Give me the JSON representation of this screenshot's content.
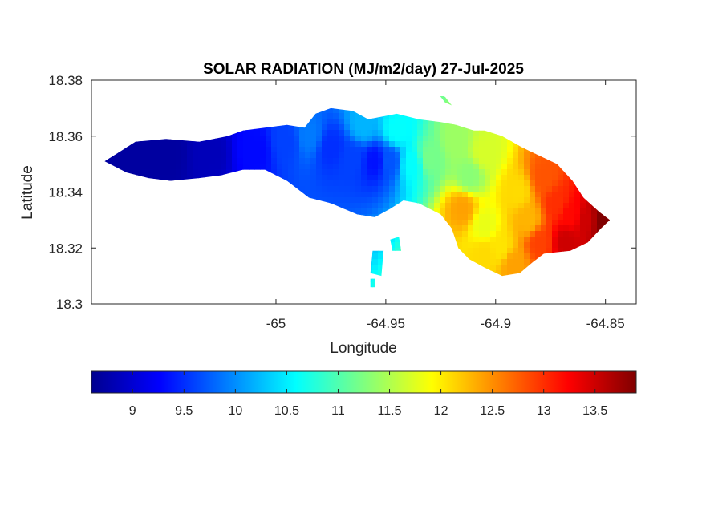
{
  "chart_data": {
    "type": "heatmap",
    "title": "SOLAR RADIATION (MJ/m2/day) 27-Jul-2025",
    "xlabel": "Longitude",
    "ylabel": "Latitude",
    "xlim": [
      -65.084,
      -64.836
    ],
    "ylim": [
      18.3,
      18.38
    ],
    "xticks": [
      -65,
      -64.95,
      -64.9,
      -64.85
    ],
    "xtick_labels": [
      "-65",
      "-64.95",
      "-64.9",
      "-64.85"
    ],
    "yticks": [
      18.3,
      18.32,
      18.34,
      18.36,
      18.38
    ],
    "ytick_labels": [
      "18.3",
      "18.32",
      "18.34",
      "18.36",
      "18.38"
    ],
    "colormap": "jet",
    "colors_jet": [
      "#00008f",
      "#0000ff",
      "#00ffff",
      "#ffff00",
      "#ff0000",
      "#800000"
    ],
    "colorbar": {
      "location": "south",
      "clim": [
        8.6,
        13.9
      ],
      "ticks": [
        9,
        9.5,
        10,
        10.5,
        11,
        11.5,
        12,
        12.5,
        13,
        13.5
      ],
      "tick_labels": [
        "9",
        "9.5",
        "10",
        "10.5",
        "11",
        "11.5",
        "12",
        "12.5",
        "13",
        "13.5"
      ]
    },
    "island_outline": [
      [
        -65.078,
        18.351
      ],
      [
        -65.072,
        18.354
      ],
      [
        -65.064,
        18.358
      ],
      [
        -65.05,
        18.359
      ],
      [
        -65.035,
        18.358
      ],
      [
        -65.022,
        18.36
      ],
      [
        -65.015,
        18.362
      ],
      [
        -65.005,
        18.363
      ],
      [
        -64.995,
        18.364
      ],
      [
        -64.987,
        18.363
      ],
      [
        -64.982,
        18.368
      ],
      [
        -64.975,
        18.37
      ],
      [
        -64.965,
        18.369
      ],
      [
        -64.958,
        18.366
      ],
      [
        -64.945,
        18.368
      ],
      [
        -64.935,
        18.366
      ],
      [
        -64.925,
        18.365
      ],
      [
        -64.918,
        18.364
      ],
      [
        -64.91,
        18.362
      ],
      [
        -64.905,
        18.362
      ],
      [
        -64.897,
        18.36
      ],
      [
        -64.888,
        18.356
      ],
      [
        -64.88,
        18.353
      ],
      [
        -64.872,
        18.35
      ],
      [
        -64.865,
        18.344
      ],
      [
        -64.86,
        18.338
      ],
      [
        -64.853,
        18.333
      ],
      [
        -64.848,
        18.33
      ],
      [
        -64.852,
        18.327
      ],
      [
        -64.858,
        18.322
      ],
      [
        -64.866,
        18.319
      ],
      [
        -64.878,
        18.318
      ],
      [
        -64.883,
        18.315
      ],
      [
        -64.889,
        18.311
      ],
      [
        -64.897,
        18.31
      ],
      [
        -64.905,
        18.313
      ],
      [
        -64.912,
        18.316
      ],
      [
        -64.917,
        18.32
      ],
      [
        -64.92,
        18.327
      ],
      [
        -64.925,
        18.332
      ],
      [
        -64.935,
        18.336
      ],
      [
        -64.942,
        18.337
      ],
      [
        -64.948,
        18.334
      ],
      [
        -64.955,
        18.331
      ],
      [
        -64.963,
        18.332
      ],
      [
        -64.975,
        18.336
      ],
      [
        -64.985,
        18.338
      ],
      [
        -64.995,
        18.344
      ],
      [
        -65.005,
        18.348
      ],
      [
        -65.015,
        18.348
      ],
      [
        -65.025,
        18.346
      ],
      [
        -65.035,
        18.345
      ],
      [
        -65.048,
        18.344
      ],
      [
        -65.058,
        18.345
      ],
      [
        -65.068,
        18.347
      ]
    ],
    "islet_outlines": [
      [
        [
          -64.948,
          18.323
        ],
        [
          -64.944,
          18.324
        ],
        [
          -64.943,
          18.319
        ],
        [
          -64.947,
          18.319
        ]
      ],
      [
        [
          -64.956,
          18.319
        ],
        [
          -64.951,
          18.319
        ],
        [
          -64.952,
          18.31
        ],
        [
          -64.957,
          18.311
        ]
      ],
      [
        [
          -64.957,
          18.309
        ],
        [
          -64.955,
          18.309
        ],
        [
          -64.955,
          18.306
        ],
        [
          -64.957,
          18.306
        ]
      ],
      [
        [
          -64.926,
          18.375
        ],
        [
          -64.923,
          18.374
        ],
        [
          -64.92,
          18.371
        ],
        [
          -64.923,
          18.372
        ]
      ]
    ],
    "values_sample_points": [
      [
        -65.07,
        18.351,
        8.7
      ],
      [
        -65.05,
        18.354,
        8.7
      ],
      [
        -65.03,
        18.354,
        8.85
      ],
      [
        -65.01,
        18.355,
        9.3
      ],
      [
        -64.995,
        18.358,
        9.6
      ],
      [
        -64.985,
        18.36,
        9.9
      ],
      [
        -64.975,
        18.356,
        9.5
      ],
      [
        -64.965,
        18.352,
        9.6
      ],
      [
        -64.955,
        18.351,
        9.35
      ],
      [
        -64.948,
        18.351,
        9.7
      ],
      [
        -64.96,
        18.364,
        10.2
      ],
      [
        -64.945,
        18.362,
        10.6
      ],
      [
        -64.938,
        18.35,
        10.6
      ],
      [
        -64.93,
        18.352,
        11.2
      ],
      [
        -64.918,
        18.358,
        11.4
      ],
      [
        -64.905,
        18.354,
        11.7
      ],
      [
        -64.912,
        18.346,
        11.3
      ],
      [
        -64.915,
        18.334,
        12.4
      ],
      [
        -64.905,
        18.328,
        11.8
      ],
      [
        -64.898,
        18.32,
        12.05
      ],
      [
        -64.89,
        18.34,
        12.1
      ],
      [
        -64.885,
        18.33,
        12.3
      ],
      [
        -64.878,
        18.345,
        12.8
      ],
      [
        -64.872,
        18.336,
        13.0
      ],
      [
        -64.866,
        18.332,
        13.2
      ],
      [
        -64.858,
        18.33,
        13.5
      ],
      [
        -64.852,
        18.33,
        13.9
      ],
      [
        -64.868,
        18.322,
        13.5
      ],
      [
        -64.88,
        18.322,
        12.9
      ],
      [
        -64.892,
        18.314,
        12.4
      ],
      [
        -64.905,
        18.318,
        12.1
      ]
    ]
  }
}
